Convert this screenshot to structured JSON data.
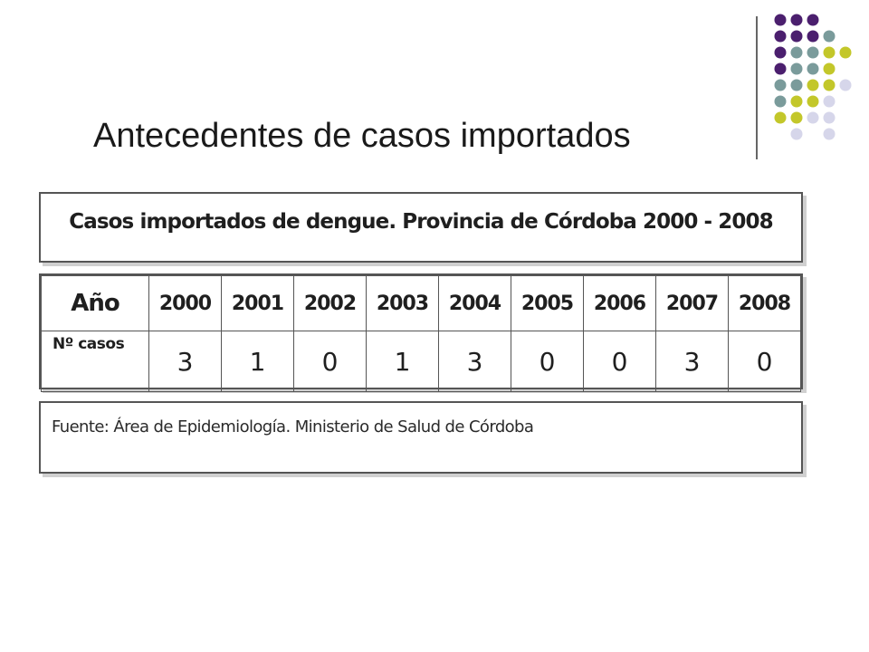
{
  "slide": {
    "title": "Antecedentes de casos importados"
  },
  "table": {
    "caption": "Casos importados de dengue. Provincia de Córdoba 2000 - 2008",
    "header_label": "Año",
    "row_label": "Nº casos",
    "years": [
      "2000",
      "2001",
      "2002",
      "2003",
      "2004",
      "2005",
      "2006",
      "2007",
      "2008"
    ],
    "cases": [
      "3",
      "1",
      "0",
      "1",
      "3",
      "0",
      "0",
      "3",
      "0"
    ]
  },
  "source": "Fuente: Área de Epidemiología. Ministerio de Salud de Córdoba",
  "colors": {
    "purple": "#4b1f6e",
    "teal": "#7a9b9b",
    "olive": "#c3c72a",
    "lavender": "#d6d6ea",
    "rule": "#333333"
  }
}
